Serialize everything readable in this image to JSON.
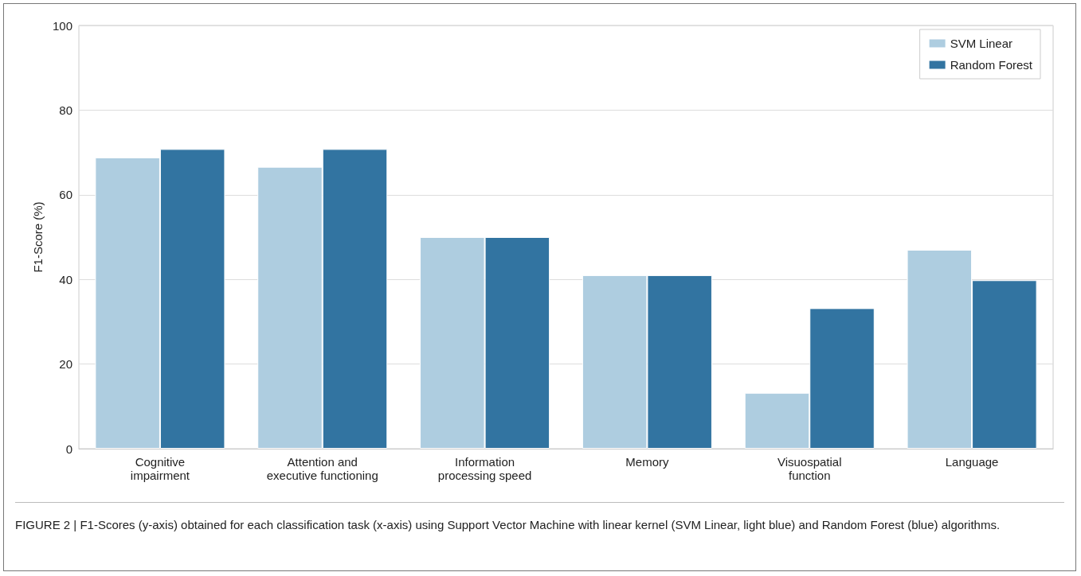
{
  "chart_data": {
    "type": "bar",
    "ylabel": "F1-Score (%)",
    "categories": [
      "Cognitive\nimpairment",
      "Attention and\nexecutive functioning",
      "Information\nprocessing speed",
      "Memory",
      "Visuospatial\nfunction",
      "Language"
    ],
    "series": [
      {
        "name": "SVM Linear",
        "color": "#aecde0",
        "values": [
          68.8,
          66.6,
          50,
          41,
          13.2,
          47
        ]
      },
      {
        "name": "Random Forest",
        "color": "#3274a1",
        "values": [
          70.8,
          70.8,
          50,
          41,
          33.2,
          39.8
        ]
      }
    ],
    "ylim": [
      0,
      100
    ],
    "yticks": [
      0,
      20,
      40,
      60,
      80,
      100
    ],
    "grid": "y",
    "legend": "top right",
    "annotations": [
      "FIGURE 2 | F1-Scores (y-axis) obtained for each classification task (x-axis) using Support Vector Machine with linear kernel (SVM Linear, light blue) and Random Forest (blue) algorithms."
    ]
  }
}
